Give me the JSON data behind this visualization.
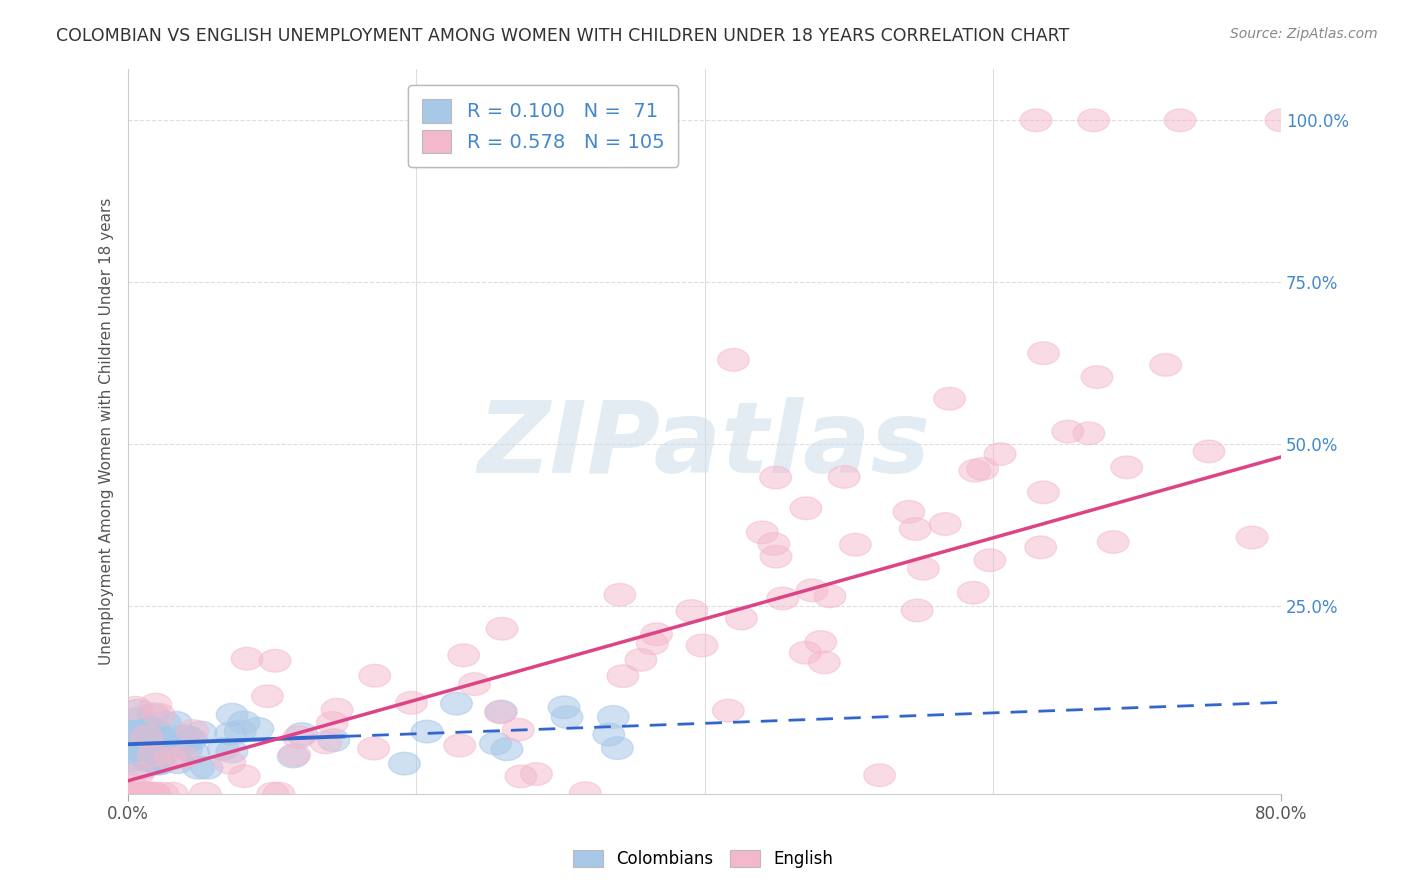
{
  "title": "COLOMBIAN VS ENGLISH UNEMPLOYMENT AMONG WOMEN WITH CHILDREN UNDER 18 YEARS CORRELATION CHART",
  "source_text": "Source: ZipAtlas.com",
  "ylabel": "Unemployment Among Women with Children Under 18 years",
  "xlim": [
    0.0,
    0.8
  ],
  "ylim": [
    -0.04,
    1.08
  ],
  "colombian_R": 0.1,
  "colombian_N": 71,
  "english_R": 0.578,
  "english_N": 105,
  "blue_color": "#a8c8e8",
  "pink_color": "#f4b8cc",
  "blue_line_color": "#3366cc",
  "pink_line_color": "#dd4488",
  "watermark_text": "ZIPatlas",
  "background_color": "#ffffff",
  "grid_color": "#dddddd",
  "right_tick_color": "#4488cc",
  "source_color": "#888888"
}
